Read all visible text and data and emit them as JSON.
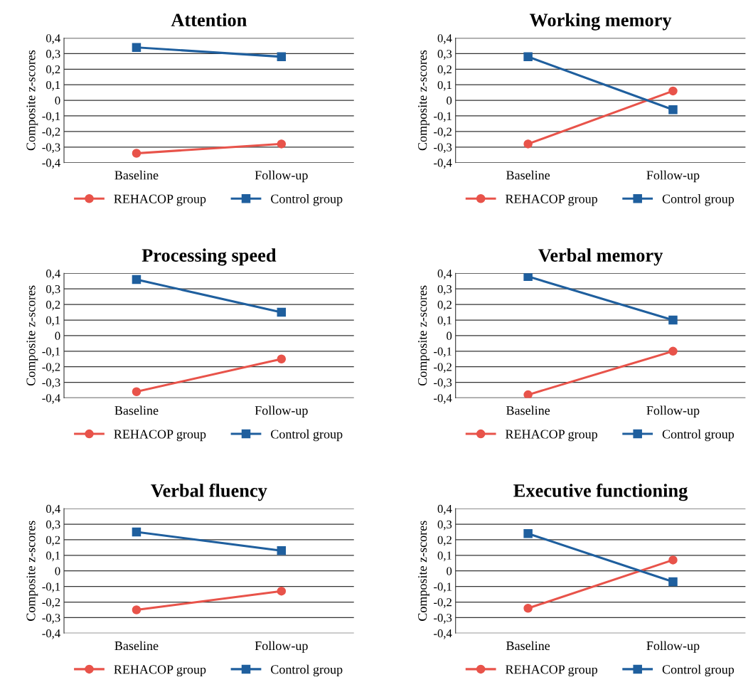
{
  "chart_data": [
    {
      "type": "line",
      "title": "Attention",
      "ylabel": "Composite z-scores",
      "categories": [
        "Baseline",
        "Follow-up"
      ],
      "series": [
        {
          "name": "REHACOP group",
          "color": "#e8534a",
          "marker": "circle",
          "values": [
            -0.34,
            -0.28
          ]
        },
        {
          "name": "Control group",
          "color": "#1f5f9e",
          "marker": "square",
          "values": [
            0.34,
            0.28
          ]
        }
      ],
      "ylim": [
        -0.4,
        0.4
      ],
      "yticks": [
        {
          "value": -0.4,
          "label": "-0,4"
        },
        {
          "value": -0.3,
          "label": "-0,3"
        },
        {
          "value": -0.2,
          "label": "-0,2"
        },
        {
          "value": -0.1,
          "label": "-0,1"
        },
        0,
        {
          "value": 0.1,
          "label": "0,1"
        },
        {
          "value": 0.2,
          "label": "0,2"
        },
        {
          "value": 0.3,
          "label": "0,3"
        },
        {
          "value": 0.4,
          "label": "0,4"
        }
      ],
      "grid": "y",
      "legend": "bottom"
    },
    {
      "type": "line",
      "title": "Working memory",
      "ylabel": "Composite z-scores",
      "categories": [
        "Baseline",
        "Follow-up"
      ],
      "series": [
        {
          "name": "REHACOP group",
          "color": "#e8534a",
          "marker": "circle",
          "values": [
            -0.28,
            0.06
          ]
        },
        {
          "name": "Control group",
          "color": "#1f5f9e",
          "marker": "square",
          "values": [
            0.28,
            -0.06
          ]
        }
      ],
      "ylim": [
        -0.4,
        0.4
      ],
      "yticks": [
        {
          "value": -0.4,
          "label": "-0,4"
        },
        {
          "value": -0.3,
          "label": "-0,3"
        },
        {
          "value": -0.2,
          "label": "-0,2"
        },
        {
          "value": -0.1,
          "label": "-0,1"
        },
        0,
        {
          "value": 0.1,
          "label": "0,1"
        },
        {
          "value": 0.2,
          "label": "0,2"
        },
        {
          "value": 0.3,
          "label": "0,3"
        },
        {
          "value": 0.4,
          "label": "0,4"
        }
      ],
      "grid": "y",
      "legend": "bottom"
    },
    {
      "type": "line",
      "title": "Processing speed",
      "ylabel": "Composite z-scores",
      "categories": [
        "Baseline",
        "Follow-up"
      ],
      "series": [
        {
          "name": "REHACOP group",
          "color": "#e8534a",
          "marker": "circle",
          "values": [
            -0.36,
            -0.15
          ]
        },
        {
          "name": "Control group",
          "color": "#1f5f9e",
          "marker": "square",
          "values": [
            0.36,
            0.15
          ]
        }
      ],
      "ylim": [
        -0.4,
        0.4
      ],
      "yticks": [
        {
          "value": -0.4,
          "label": "-0,4"
        },
        {
          "value": -0.3,
          "label": "-0,3"
        },
        {
          "value": -0.2,
          "label": "-0,2"
        },
        {
          "value": -0.1,
          "label": "-0,1"
        },
        0,
        {
          "value": 0.1,
          "label": "0,1"
        },
        {
          "value": 0.2,
          "label": "0,2"
        },
        {
          "value": 0.3,
          "label": "0,3"
        },
        {
          "value": 0.4,
          "label": "0,4"
        }
      ],
      "grid": "y",
      "legend": "bottom"
    },
    {
      "type": "line",
      "title": "Verbal memory",
      "ylabel": "Composite z-scores",
      "categories": [
        "Baseline",
        "Follow-up"
      ],
      "series": [
        {
          "name": "REHACOP group",
          "color": "#e8534a",
          "marker": "circle",
          "values": [
            -0.38,
            -0.1
          ]
        },
        {
          "name": "Control group",
          "color": "#1f5f9e",
          "marker": "square",
          "values": [
            0.38,
            0.1
          ]
        }
      ],
      "ylim": [
        -0.4,
        0.4
      ],
      "yticks": [
        {
          "value": -0.4,
          "label": "-0,4"
        },
        {
          "value": -0.3,
          "label": "-0,3"
        },
        {
          "value": -0.2,
          "label": "-0,2"
        },
        {
          "value": -0.1,
          "label": "-0,1"
        },
        0,
        {
          "value": 0.1,
          "label": "0,1"
        },
        {
          "value": 0.2,
          "label": "0,2"
        },
        {
          "value": 0.3,
          "label": "0,3"
        },
        {
          "value": 0.4,
          "label": "0,4"
        }
      ],
      "grid": "y",
      "legend": "bottom"
    },
    {
      "type": "line",
      "title": "Verbal fluency",
      "ylabel": "Composite z-scores",
      "categories": [
        "Baseline",
        "Follow-up"
      ],
      "series": [
        {
          "name": "REHACOP group",
          "color": "#e8534a",
          "marker": "circle",
          "values": [
            -0.25,
            -0.13
          ]
        },
        {
          "name": "Control group",
          "color": "#1f5f9e",
          "marker": "square",
          "values": [
            0.25,
            0.13
          ]
        }
      ],
      "ylim": [
        -0.4,
        0.4
      ],
      "yticks": [
        {
          "value": -0.4,
          "label": "-0,4"
        },
        {
          "value": -0.3,
          "label": "-0,3"
        },
        {
          "value": -0.2,
          "label": "-0,2"
        },
        {
          "value": -0.1,
          "label": "-0,1"
        },
        0,
        {
          "value": 0.1,
          "label": "0,1"
        },
        {
          "value": 0.2,
          "label": "0,2"
        },
        {
          "value": 0.3,
          "label": "0,3"
        },
        {
          "value": 0.4,
          "label": "0,4"
        }
      ],
      "grid": "y",
      "legend": "bottom"
    },
    {
      "type": "line",
      "title": "Executive functioning",
      "ylabel": "Composite z-scores",
      "categories": [
        "Baseline",
        "Follow-up"
      ],
      "series": [
        {
          "name": "REHACOP group",
          "color": "#e8534a",
          "marker": "circle",
          "values": [
            -0.24,
            0.07
          ]
        },
        {
          "name": "Control group",
          "color": "#1f5f9e",
          "marker": "square",
          "values": [
            0.24,
            -0.07
          ]
        }
      ],
      "ylim": [
        -0.4,
        0.4
      ],
      "yticks": [
        {
          "value": -0.4,
          "label": "-0,4"
        },
        {
          "value": -0.3,
          "label": "-0,3"
        },
        {
          "value": -0.2,
          "label": "-0,2"
        },
        {
          "value": -0.1,
          "label": "-0,1"
        },
        0,
        {
          "value": 0.1,
          "label": "0,1"
        },
        {
          "value": 0.2,
          "label": "0,2"
        },
        {
          "value": 0.3,
          "label": "0,3"
        },
        {
          "value": 0.4,
          "label": "0,4"
        }
      ],
      "grid": "y",
      "legend": "bottom"
    }
  ]
}
